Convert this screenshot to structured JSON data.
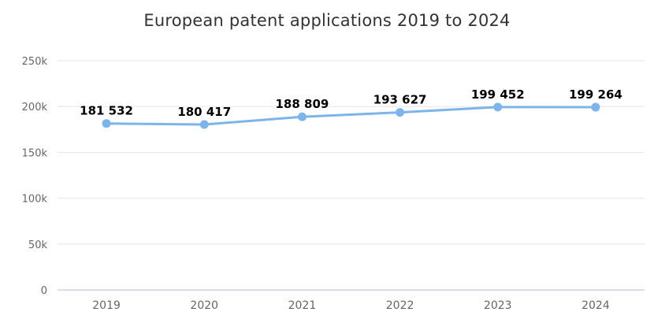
{
  "chart_data": {
    "type": "line",
    "title": "European patent applications 2019 to 2024",
    "categories": [
      "2019",
      "2020",
      "2021",
      "2022",
      "2023",
      "2024"
    ],
    "series": [
      {
        "name": "European patent applications",
        "values": [
          181532,
          180417,
          188809,
          193627,
          199452,
          199264
        ],
        "data_labels": [
          "181 532",
          "180 417",
          "188 809",
          "193 627",
          "199 452",
          "199 264"
        ]
      }
    ],
    "xlabel": "",
    "ylabel": "",
    "ylim": [
      0,
      250000
    ],
    "ytick_step": 50000,
    "ytick_labels": [
      "0",
      "50k",
      "100k",
      "150k",
      "200k",
      "250k"
    ],
    "grid": true,
    "legend": "none",
    "colors": {
      "line": "#7cb5ec",
      "marker": "#7cb5ec",
      "grid_line": "#e6e6e6",
      "axis_line": "#ccd6eb",
      "tick_label": "#666666",
      "data_label": "#000000",
      "title": "#333333",
      "background": "#ffffff"
    }
  }
}
